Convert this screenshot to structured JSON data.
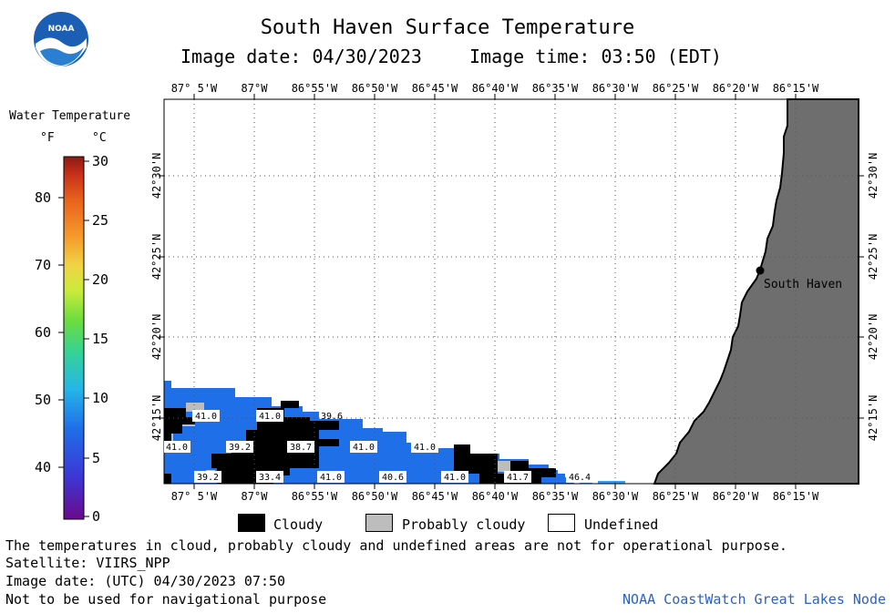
{
  "header": {
    "title": "South Haven Surface Temperature",
    "image_date_label": "Image date: 04/30/2023",
    "image_time_label": "Image time: 03:50 (EDT)"
  },
  "logo": {
    "text": "NOAA"
  },
  "colorbar": {
    "title": "Water Temperature",
    "unit_f": "°F",
    "unit_c": "°C",
    "f_ticks": [
      "80",
      "70",
      "60",
      "50",
      "40"
    ],
    "c_ticks": [
      "30",
      "25",
      "20",
      "15",
      "10",
      "5",
      "0"
    ],
    "colors": [
      "#6a0a8c",
      "#3b38d6",
      "#1f6fe8",
      "#25b6e8",
      "#35d296",
      "#6edd3e",
      "#c9ec3c",
      "#f0d445",
      "#f59a2b",
      "#e8621c",
      "#c8311a",
      "#8c1a12"
    ]
  },
  "map": {
    "lon_labels": [
      "87° 5'W",
      "87°W",
      "86°55'W",
      "86°50'W",
      "86°45'W",
      "86°40'W",
      "86°35'W",
      "86°30'W",
      "86°25'W",
      "86°20'W",
      "86°15'W"
    ],
    "lat_labels": [
      "42°30'N",
      "42°25'N",
      "42°20'N",
      "42°15'N"
    ],
    "city": "South Haven",
    "colors": {
      "water": "#1f6fe8",
      "water_light": "#3a9ef0",
      "land": "#6e6e6e",
      "cloud": "#000000",
      "probably_cloudy": "#bdbdbd"
    },
    "temperature_labels": [
      "41.0",
      "41.0",
      "39.6",
      "41.0",
      "39.2",
      "38.7",
      "41.0",
      "41.0",
      "39.2",
      "33.4",
      "41.0",
      "40.6",
      "41.0",
      "41.7",
      "46.4"
    ]
  },
  "key": {
    "cloudy": "Cloudy",
    "probably_cloudy": "Probably cloudy",
    "undefined": "Undefined"
  },
  "footer": {
    "line1": "The temperatures in cloud, probably cloudy and undefined areas are not for operational purpose.",
    "line2": "Satellite: VIIRS_NPP",
    "line3": "Image date: (UTC) 04/30/2023  07:50",
    "line4": "Not to be used for navigational purpose",
    "node": "NOAA CoastWatch Great Lakes Node"
  }
}
